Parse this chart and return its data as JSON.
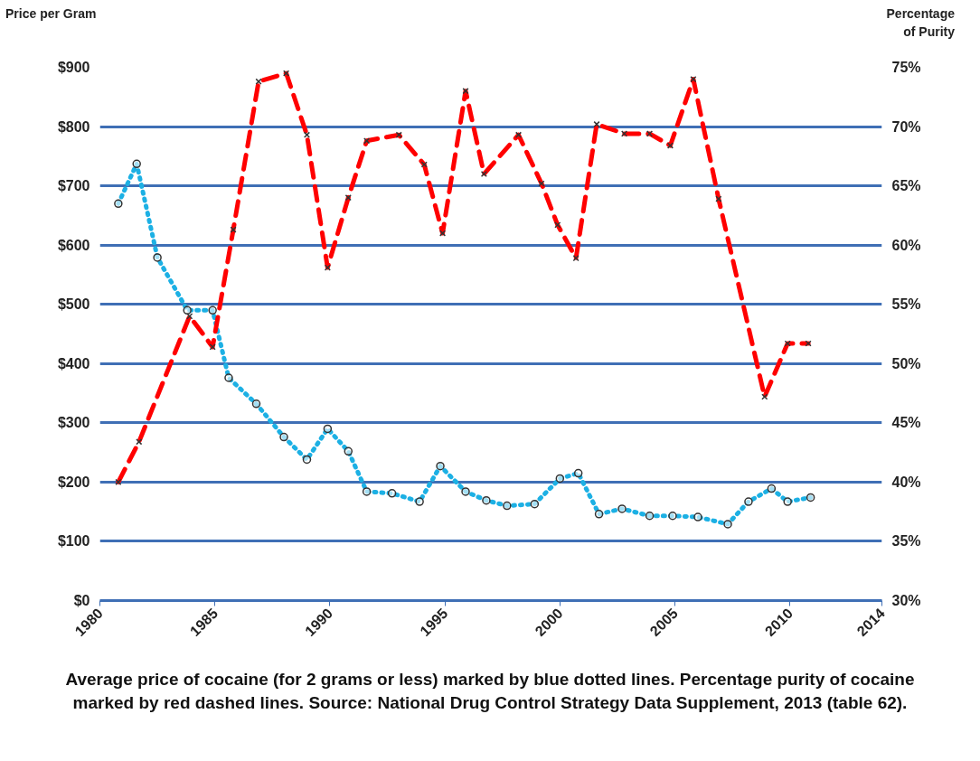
{
  "chart_data": {
    "type": "line",
    "ylabel": "Price per Gram",
    "y2label": "Percentage\nof Purity",
    "xlim": [
      1980,
      2014
    ],
    "xticks": [
      1980,
      1985,
      1990,
      1995,
      2000,
      2005,
      2010,
      2014
    ],
    "ylim": [
      0,
      900
    ],
    "yticks": [
      {
        "value": 0,
        "label": "$0"
      },
      {
        "value": 100,
        "label": "$100"
      },
      {
        "value": 200,
        "label": "$200"
      },
      {
        "value": 300,
        "label": "$300"
      },
      {
        "value": 400,
        "label": "$400"
      },
      {
        "value": 500,
        "label": "$500"
      },
      {
        "value": 600,
        "label": "$600"
      },
      {
        "value": 700,
        "label": "$700"
      },
      {
        "value": 800,
        "label": "$800"
      },
      {
        "value": 900,
        "label": "$900"
      }
    ],
    "y2lim": [
      30,
      75
    ],
    "y2ticks": [
      {
        "value": 30,
        "label": "30%"
      },
      {
        "value": 35,
        "label": "35%"
      },
      {
        "value": 40,
        "label": "40%"
      },
      {
        "value": 45,
        "label": "45%"
      },
      {
        "value": 50,
        "label": "50%"
      },
      {
        "value": 55,
        "label": "55%"
      },
      {
        "value": 60,
        "label": "60%"
      },
      {
        "value": 65,
        "label": "65%"
      },
      {
        "value": 70,
        "label": "70%"
      },
      {
        "value": 75,
        "label": "75%"
      }
    ],
    "grid": "y",
    "series": [
      {
        "color": "#1cb0e4",
        "marker": "circle",
        "line_style": "dotted",
        "x": [
          1980.8,
          1981.6,
          1982.5,
          1983.8,
          1984.9,
          1985.6,
          1986.8,
          1988.0,
          1989.0,
          1989.9,
          1990.8,
          1991.6,
          1992.7,
          1993.9,
          1994.8,
          1995.9,
          1996.8,
          1997.7,
          1998.9,
          2000.0,
          2000.8,
          2001.7,
          2002.7,
          2003.9,
          2004.9,
          2006.0,
          2007.3,
          2008.2,
          2009.2,
          2009.9,
          2010.9
        ],
        "values": [
          670,
          737,
          579,
          490,
          490,
          376,
          332,
          276,
          238,
          290,
          252,
          184,
          181,
          167,
          227,
          184,
          169,
          160,
          163,
          206,
          215,
          146,
          155,
          143,
          143,
          141,
          129,
          167,
          189,
          167,
          174
        ]
      },
      {
        "color": "#ff0000",
        "marker": "cross",
        "line_style": "dashed",
        "axis": "y2",
        "x": [
          1980.8,
          1981.7,
          1983.9,
          1984.9,
          1985.8,
          1986.9,
          1988.1,
          1989.0,
          1989.9,
          1990.8,
          1991.6,
          1993.0,
          1994.1,
          1994.9,
          1995.9,
          1996.7,
          1998.2,
          1999.2,
          1999.9,
          2000.7,
          2001.6,
          2002.8,
          2003.9,
          2004.8,
          2005.8,
          2006.9,
          2008.9,
          2009.9,
          2010.8
        ],
        "values": [
          40.0,
          43.4,
          54.0,
          51.4,
          61.3,
          73.8,
          74.5,
          69.3,
          58.1,
          64.0,
          68.8,
          69.3,
          66.8,
          61.0,
          73.0,
          66.0,
          69.3,
          65.2,
          61.7,
          58.9,
          70.2,
          69.4,
          69.4,
          68.4,
          74.0,
          63.9,
          47.2,
          51.7,
          51.7
        ]
      }
    ],
    "annotations": [
      "Average price of cocaine (for 2 grams or less) marked by blue dotted lines. Percentage purity of cocaine marked by red dashed lines. Source: National Drug Control Strategy Data Supplement, 2013 (table 62)."
    ]
  }
}
